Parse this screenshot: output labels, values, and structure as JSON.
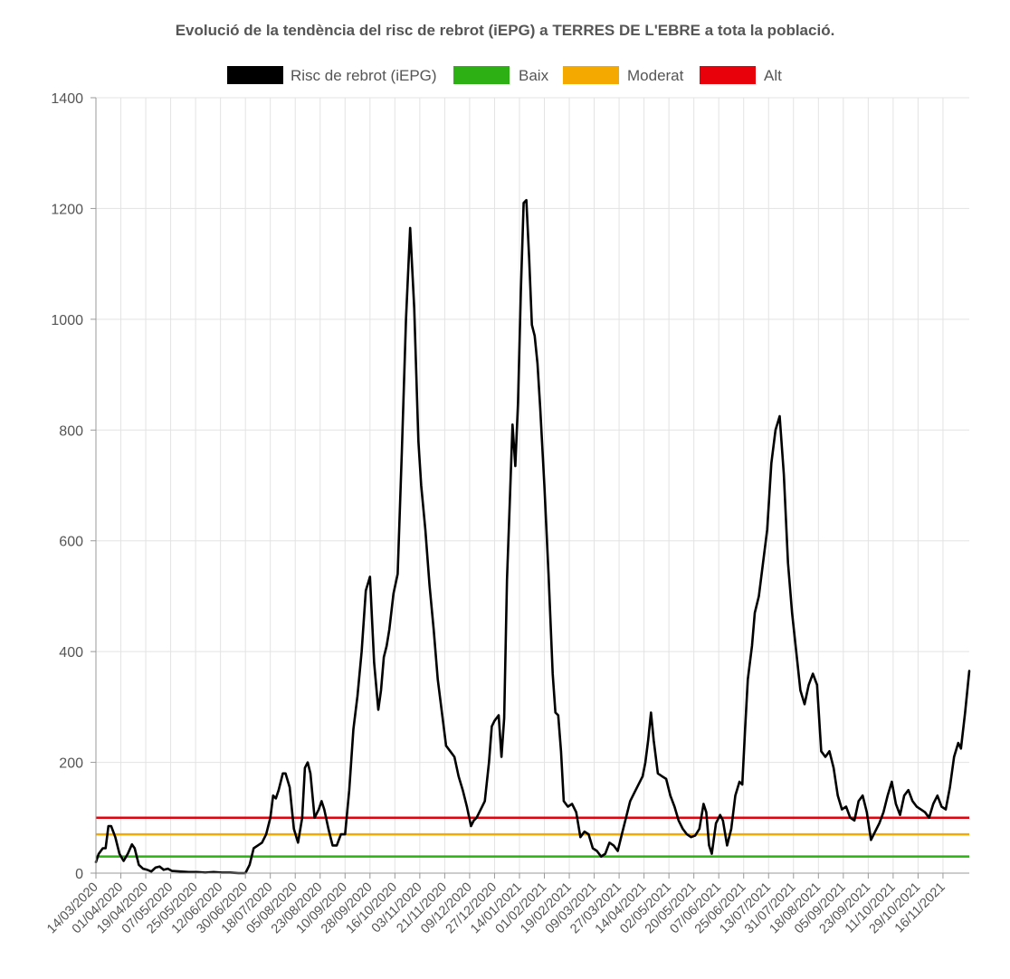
{
  "chart_data": {
    "type": "line",
    "title": "Evolució de la tendència del risc de rebrot (iEPG) a TERRES DE L'EBRE a tota la població.",
    "xlabel": "",
    "ylabel": "",
    "ylim": [
      0,
      1400
    ],
    "yticks": [
      0,
      200,
      400,
      600,
      800,
      1000,
      1200,
      1400
    ],
    "grid": true,
    "legend_position": "top",
    "x_tick_labels": [
      "14/03/2020",
      "01/04/2020",
      "19/04/2020",
      "07/05/2020",
      "25/05/2020",
      "12/06/2020",
      "30/06/2020",
      "18/07/2020",
      "05/08/2020",
      "23/08/2020",
      "10/09/2020",
      "28/09/2020",
      "16/10/2020",
      "03/11/2020",
      "21/11/2020",
      "09/12/2020",
      "27/12/2020",
      "14/01/2021",
      "01/02/2021",
      "19/02/2021",
      "09/03/2021",
      "27/03/2021",
      "14/04/2021",
      "02/05/2021",
      "20/05/2021",
      "07/06/2021",
      "25/06/2021",
      "13/07/2021",
      "31/07/2021",
      "18/08/2021",
      "05/09/2021",
      "23/09/2021",
      "11/10/2021",
      "29/10/2021",
      "16/11/2021"
    ],
    "series": [
      {
        "name": "Risc de rebrot (iEPG)",
        "color": "#000000",
        "points": [
          [
            "2020-03-14",
            20
          ],
          [
            "2020-03-16",
            35
          ],
          [
            "2020-03-19",
            45
          ],
          [
            "2020-03-21",
            45
          ],
          [
            "2020-03-23",
            85
          ],
          [
            "2020-03-25",
            85
          ],
          [
            "2020-03-28",
            65
          ],
          [
            "2020-03-31",
            35
          ],
          [
            "2020-04-03",
            22
          ],
          [
            "2020-04-06",
            35
          ],
          [
            "2020-04-09",
            52
          ],
          [
            "2020-04-11",
            45
          ],
          [
            "2020-04-14",
            15
          ],
          [
            "2020-04-17",
            8
          ],
          [
            "2020-04-20",
            6
          ],
          [
            "2020-04-23",
            3
          ],
          [
            "2020-04-26",
            10
          ],
          [
            "2020-04-29",
            12
          ],
          [
            "2020-05-02",
            6
          ],
          [
            "2020-05-05",
            8
          ],
          [
            "2020-05-08",
            4
          ],
          [
            "2020-05-14",
            3
          ],
          [
            "2020-05-20",
            2
          ],
          [
            "2020-05-26",
            2
          ],
          [
            "2020-06-01",
            1
          ],
          [
            "2020-06-07",
            2
          ],
          [
            "2020-06-13",
            1
          ],
          [
            "2020-06-19",
            1
          ],
          [
            "2020-06-25",
            0
          ],
          [
            "2020-06-30",
            0
          ],
          [
            "2020-07-03",
            15
          ],
          [
            "2020-07-06",
            45
          ],
          [
            "2020-07-09",
            50
          ],
          [
            "2020-07-12",
            55
          ],
          [
            "2020-07-15",
            70
          ],
          [
            "2020-07-18",
            100
          ],
          [
            "2020-07-20",
            140
          ],
          [
            "2020-07-22",
            135
          ],
          [
            "2020-07-24",
            150
          ],
          [
            "2020-07-27",
            180
          ],
          [
            "2020-07-29",
            180
          ],
          [
            "2020-08-01",
            155
          ],
          [
            "2020-08-04",
            80
          ],
          [
            "2020-08-07",
            55
          ],
          [
            "2020-08-10",
            100
          ],
          [
            "2020-08-12",
            190
          ],
          [
            "2020-08-14",
            200
          ],
          [
            "2020-08-16",
            180
          ],
          [
            "2020-08-19",
            100
          ],
          [
            "2020-08-22",
            115
          ],
          [
            "2020-08-24",
            130
          ],
          [
            "2020-08-26",
            115
          ],
          [
            "2020-08-29",
            80
          ],
          [
            "2020-09-01",
            50
          ],
          [
            "2020-09-04",
            50
          ],
          [
            "2020-09-07",
            70
          ],
          [
            "2020-09-10",
            70
          ],
          [
            "2020-09-13",
            150
          ],
          [
            "2020-09-16",
            260
          ],
          [
            "2020-09-19",
            320
          ],
          [
            "2020-09-22",
            400
          ],
          [
            "2020-09-25",
            510
          ],
          [
            "2020-09-28",
            535
          ],
          [
            "2020-10-01",
            380
          ],
          [
            "2020-10-04",
            295
          ],
          [
            "2020-10-06",
            330
          ],
          [
            "2020-10-08",
            390
          ],
          [
            "2020-10-10",
            410
          ],
          [
            "2020-10-12",
            440
          ],
          [
            "2020-10-15",
            505
          ],
          [
            "2020-10-18",
            540
          ],
          [
            "2020-10-21",
            760
          ],
          [
            "2020-10-24",
            1000
          ],
          [
            "2020-10-27",
            1165
          ],
          [
            "2020-10-30",
            1020
          ],
          [
            "2020-11-02",
            780
          ],
          [
            "2020-11-04",
            700
          ],
          [
            "2020-11-07",
            620
          ],
          [
            "2020-11-10",
            520
          ],
          [
            "2020-11-13",
            440
          ],
          [
            "2020-11-16",
            350
          ],
          [
            "2020-11-19",
            290
          ],
          [
            "2020-11-22",
            230
          ],
          [
            "2020-11-25",
            220
          ],
          [
            "2020-11-28",
            210
          ],
          [
            "2020-12-01",
            175
          ],
          [
            "2020-12-04",
            150
          ],
          [
            "2020-12-07",
            120
          ],
          [
            "2020-12-10",
            85
          ],
          [
            "2020-12-12",
            95
          ],
          [
            "2020-12-14",
            100
          ],
          [
            "2020-12-17",
            115
          ],
          [
            "2020-12-20",
            130
          ],
          [
            "2020-12-23",
            200
          ],
          [
            "2020-12-25",
            265
          ],
          [
            "2020-12-27",
            275
          ],
          [
            "2020-12-30",
            285
          ],
          [
            "2021-01-01",
            210
          ],
          [
            "2021-01-03",
            280
          ],
          [
            "2021-01-05",
            530
          ],
          [
            "2021-01-07",
            670
          ],
          [
            "2021-01-09",
            810
          ],
          [
            "2021-01-11",
            735
          ],
          [
            "2021-01-13",
            850
          ],
          [
            "2021-01-15",
            1050
          ],
          [
            "2021-01-17",
            1210
          ],
          [
            "2021-01-19",
            1215
          ],
          [
            "2021-01-21",
            1110
          ],
          [
            "2021-01-23",
            990
          ],
          [
            "2021-01-25",
            970
          ],
          [
            "2021-01-27",
            920
          ],
          [
            "2021-01-29",
            840
          ],
          [
            "2021-02-01",
            700
          ],
          [
            "2021-02-04",
            540
          ],
          [
            "2021-02-07",
            360
          ],
          [
            "2021-02-09",
            290
          ],
          [
            "2021-02-11",
            285
          ],
          [
            "2021-02-13",
            220
          ],
          [
            "2021-02-15",
            130
          ],
          [
            "2021-02-18",
            120
          ],
          [
            "2021-02-21",
            125
          ],
          [
            "2021-02-24",
            110
          ],
          [
            "2021-02-27",
            65
          ],
          [
            "2021-03-02",
            75
          ],
          [
            "2021-03-05",
            70
          ],
          [
            "2021-03-08",
            45
          ],
          [
            "2021-03-11",
            40
          ],
          [
            "2021-03-14",
            30
          ],
          [
            "2021-03-17",
            35
          ],
          [
            "2021-03-20",
            55
          ],
          [
            "2021-03-23",
            50
          ],
          [
            "2021-03-26",
            40
          ],
          [
            "2021-03-29",
            70
          ],
          [
            "2021-04-01",
            100
          ],
          [
            "2021-04-04",
            130
          ],
          [
            "2021-04-07",
            145
          ],
          [
            "2021-04-10",
            160
          ],
          [
            "2021-04-13",
            175
          ],
          [
            "2021-04-15",
            200
          ],
          [
            "2021-04-17",
            240
          ],
          [
            "2021-04-19",
            290
          ],
          [
            "2021-04-21",
            240
          ],
          [
            "2021-04-24",
            180
          ],
          [
            "2021-04-27",
            175
          ],
          [
            "2021-04-30",
            170
          ],
          [
            "2021-05-03",
            140
          ],
          [
            "2021-05-06",
            120
          ],
          [
            "2021-05-09",
            95
          ],
          [
            "2021-05-12",
            80
          ],
          [
            "2021-05-15",
            70
          ],
          [
            "2021-05-18",
            65
          ],
          [
            "2021-05-21",
            68
          ],
          [
            "2021-05-24",
            80
          ],
          [
            "2021-05-27",
            125
          ],
          [
            "2021-05-29",
            110
          ],
          [
            "2021-05-31",
            50
          ],
          [
            "2021-06-02",
            35
          ],
          [
            "2021-06-05",
            90
          ],
          [
            "2021-06-08",
            105
          ],
          [
            "2021-06-10",
            95
          ],
          [
            "2021-06-13",
            50
          ],
          [
            "2021-06-16",
            80
          ],
          [
            "2021-06-19",
            140
          ],
          [
            "2021-06-22",
            165
          ],
          [
            "2021-06-24",
            160
          ],
          [
            "2021-06-26",
            260
          ],
          [
            "2021-06-28",
            350
          ],
          [
            "2021-07-01",
            410
          ],
          [
            "2021-07-03",
            470
          ],
          [
            "2021-07-06",
            500
          ],
          [
            "2021-07-09",
            560
          ],
          [
            "2021-07-12",
            620
          ],
          [
            "2021-07-15",
            740
          ],
          [
            "2021-07-18",
            800
          ],
          [
            "2021-07-21",
            825
          ],
          [
            "2021-07-24",
            720
          ],
          [
            "2021-07-27",
            560
          ],
          [
            "2021-07-30",
            470
          ],
          [
            "2021-08-02",
            400
          ],
          [
            "2021-08-05",
            330
          ],
          [
            "2021-08-08",
            305
          ],
          [
            "2021-08-11",
            340
          ],
          [
            "2021-08-14",
            360
          ],
          [
            "2021-08-17",
            340
          ],
          [
            "2021-08-20",
            220
          ],
          [
            "2021-08-23",
            210
          ],
          [
            "2021-08-26",
            220
          ],
          [
            "2021-08-29",
            190
          ],
          [
            "2021-09-01",
            140
          ],
          [
            "2021-09-04",
            115
          ],
          [
            "2021-09-07",
            120
          ],
          [
            "2021-09-10",
            100
          ],
          [
            "2021-09-13",
            95
          ],
          [
            "2021-09-16",
            130
          ],
          [
            "2021-09-19",
            140
          ],
          [
            "2021-09-22",
            110
          ],
          [
            "2021-09-25",
            60
          ],
          [
            "2021-09-28",
            75
          ],
          [
            "2021-10-01",
            90
          ],
          [
            "2021-10-04",
            110
          ],
          [
            "2021-10-07",
            140
          ],
          [
            "2021-10-10",
            165
          ],
          [
            "2021-10-13",
            125
          ],
          [
            "2021-10-16",
            105
          ],
          [
            "2021-10-19",
            140
          ],
          [
            "2021-10-22",
            150
          ],
          [
            "2021-10-25",
            130
          ],
          [
            "2021-10-28",
            120
          ],
          [
            "2021-10-31",
            115
          ],
          [
            "2021-11-03",
            110
          ],
          [
            "2021-11-06",
            100
          ],
          [
            "2021-11-09",
            125
          ],
          [
            "2021-11-12",
            140
          ],
          [
            "2021-11-15",
            120
          ],
          [
            "2021-11-18",
            115
          ],
          [
            "2021-11-21",
            155
          ],
          [
            "2021-11-24",
            210
          ],
          [
            "2021-11-27",
            235
          ],
          [
            "2021-11-29",
            225
          ],
          [
            "2021-12-02",
            290
          ],
          [
            "2021-12-05",
            365
          ]
        ]
      }
    ],
    "thresholds": [
      {
        "name": "Baix",
        "color": "#2cb014",
        "value": 30
      },
      {
        "name": "Moderat",
        "color": "#f4a900",
        "value": 70
      },
      {
        "name": "Alt",
        "color": "#e8000b",
        "value": 100
      }
    ]
  }
}
